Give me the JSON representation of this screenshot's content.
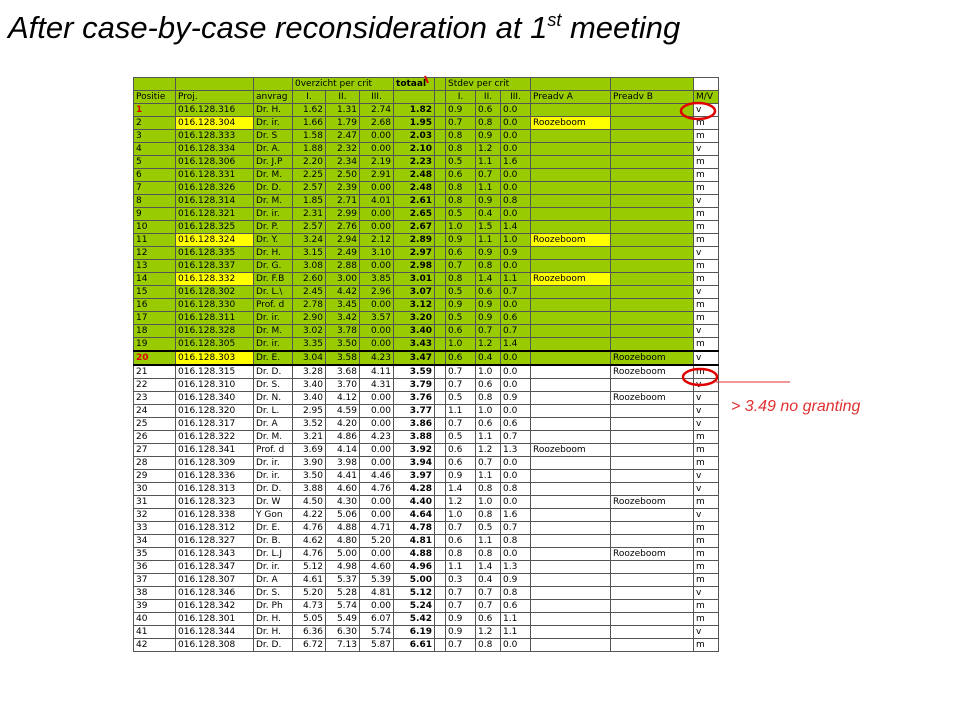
{
  "title": {
    "text": "After case-by-case reconsideration at 1",
    "superscript": "st",
    "text_end": " meeting"
  },
  "annotation": "> 3.49 no granting",
  "table": {
    "group_headers": {
      "scores": "0verzicht per crit",
      "total": "totaal",
      "stdev": "Stdev per crit"
    },
    "columns": [
      "Positie",
      "Proj.",
      "anvrag",
      "I.",
      "II.",
      "III.",
      null,
      "I.",
      "II.",
      "III.",
      "Preadv A",
      "Preadv B",
      "M/V"
    ],
    "rows": [
      [
        "1",
        "016.128.316",
        "Dr. H.",
        "1.62",
        "1.31",
        "2.74",
        "1.82",
        "0.9",
        "0.6",
        "0.0",
        null,
        null,
        "v"
      ],
      [
        "2",
        "016.128.304",
        "Dr. ir.",
        "1.66",
        "1.79",
        "2.68",
        "1.95",
        "0.7",
        "0.8",
        "0.0",
        "Roozeboom",
        null,
        "m"
      ],
      [
        "3",
        "016.128.333",
        "Dr. S",
        "1.58",
        "2.47",
        "0.00",
        "2.03",
        "0.8",
        "0.9",
        "0.0",
        null,
        null,
        "m"
      ],
      [
        "4",
        "016.128.334",
        "Dr. A.",
        "1.88",
        "2.32",
        "0.00",
        "2.10",
        "0.8",
        "1.2",
        "0.0",
        null,
        null,
        "v"
      ],
      [
        "5",
        "016.128.306",
        "Dr. J.P",
        "2.20",
        "2.34",
        "2.19",
        "2.23",
        "0.5",
        "1.1",
        "1.6",
        null,
        null,
        "m"
      ],
      [
        "6",
        "016.128.331",
        "Dr. M.",
        "2.25",
        "2.50",
        "2.91",
        "2.48",
        "0.6",
        "0.7",
        "0.0",
        null,
        null,
        "m"
      ],
      [
        "7",
        "016.128.326",
        "Dr. D.",
        "2.57",
        "2.39",
        "0.00",
        "2.48",
        "0.8",
        "1.1",
        "0.0",
        null,
        null,
        "m"
      ],
      [
        "8",
        "016.128.314",
        "Dr. M.",
        "1.85",
        "2.71",
        "4.01",
        "2.61",
        "0.8",
        "0.9",
        "0.8",
        null,
        null,
        "v"
      ],
      [
        "9",
        "016.128.321",
        "Dr. ir.",
        "2.31",
        "2.99",
        "0.00",
        "2.65",
        "0.5",
        "0.4",
        "0.0",
        null,
        null,
        "m"
      ],
      [
        "10",
        "016.128.325",
        "Dr. P.",
        "2.57",
        "2.76",
        "0.00",
        "2.67",
        "1.0",
        "1.5",
        "1.4",
        null,
        null,
        "m"
      ],
      [
        "11",
        "016.128.324",
        "Dr. Y.",
        "3.24",
        "2.94",
        "2.12",
        "2.89",
        "0.9",
        "1.1",
        "1.0",
        "Roozeboom",
        null,
        "m"
      ],
      [
        "12",
        "016.128.335",
        "Dr. H.",
        "3.15",
        "2.49",
        "3.10",
        "2.97",
        "0.6",
        "0.9",
        "0.9",
        null,
        null,
        "v"
      ],
      [
        "13",
        "016.128.337",
        "Dr. G.",
        "3.08",
        "2.88",
        "0.00",
        "2.98",
        "0.7",
        "0.8",
        "0.0",
        null,
        null,
        "m"
      ],
      [
        "14",
        "016.128.332",
        "Dr. F.B",
        "2.60",
        "3.00",
        "3.85",
        "3.01",
        "0.8",
        "1.4",
        "1.1",
        "Roozeboom",
        null,
        "m"
      ],
      [
        "15",
        "016.128.302",
        "Dr. L.\\",
        "2.45",
        "4.42",
        "2.96",
        "3.07",
        "0.5",
        "0.6",
        "0.7",
        null,
        null,
        "v"
      ],
      [
        "16",
        "016.128.330",
        "Prof. d",
        "2.78",
        "3.45",
        "0.00",
        "3.12",
        "0.9",
        "0.9",
        "0.0",
        null,
        null,
        "m"
      ],
      [
        "17",
        "016.128.311",
        "Dr. ir.",
        "2.90",
        "3.42",
        "3.57",
        "3.20",
        "0.5",
        "0.9",
        "0.6",
        null,
        null,
        "m"
      ],
      [
        "18",
        "016.128.328",
        "Dr. M.",
        "3.02",
        "3.78",
        "0.00",
        "3.40",
        "0.6",
        "0.7",
        "0.7",
        null,
        null,
        "v"
      ],
      [
        "19",
        "016.128.305",
        "Dr. ir.",
        "3.35",
        "3.50",
        "0.00",
        "3.43",
        "1.0",
        "1.2",
        "1.4",
        null,
        null,
        "m"
      ],
      [
        "20",
        "016.128.303",
        "Dr. E.",
        "3.04",
        "3.58",
        "4.23",
        "3.47",
        "0.6",
        "0.4",
        "0.0",
        null,
        "Roozeboom",
        "v"
      ],
      [
        "21",
        "016.128.315",
        "Dr. D.",
        "3.28",
        "3.68",
        "4.11",
        "3.59",
        "0.7",
        "1.0",
        "0.0",
        null,
        "Roozeboom",
        "m"
      ],
      [
        "22",
        "016.128.310",
        "Dr. S.",
        "3.40",
        "3.70",
        "4.31",
        "3.79",
        "0.7",
        "0.6",
        "0.0",
        null,
        null,
        "v"
      ],
      [
        "23",
        "016.128.340",
        "Dr. N.",
        "3.40",
        "4.12",
        "0.00",
        "3.76",
        "0.5",
        "0.8",
        "0.9",
        null,
        "Roozeboom",
        "v"
      ],
      [
        "24",
        "016.128.320",
        "Dr. L.",
        "2.95",
        "4.59",
        "0.00",
        "3.77",
        "1.1",
        "1.0",
        "0.0",
        null,
        null,
        "v"
      ],
      [
        "25",
        "016.128.317",
        "Dr. A",
        "3.52",
        "4.20",
        "0.00",
        "3.86",
        "0.7",
        "0.6",
        "0.6",
        null,
        null,
        "v"
      ],
      [
        "26",
        "016.128.322",
        "Dr. M.",
        "3.21",
        "4.86",
        "4.23",
        "3.88",
        "0.5",
        "1.1",
        "0.7",
        null,
        null,
        "m"
      ],
      [
        "27",
        "016.128.341",
        "Prof. d",
        "3.69",
        "4.14",
        "0.00",
        "3.92",
        "0.6",
        "1.2",
        "1.3",
        "Roozeboom",
        null,
        "m"
      ],
      [
        "28",
        "016.128.309",
        "Dr. ir.",
        "3.90",
        "3.98",
        "0.00",
        "3.94",
        "0.6",
        "0.7",
        "0.0",
        null,
        null,
        "m"
      ],
      [
        "29",
        "016.128.336",
        "Dr. ir.",
        "3.50",
        "4.41",
        "4.46",
        "3.97",
        "0.9",
        "1.1",
        "0.0",
        null,
        null,
        "v"
      ],
      [
        "30",
        "016.128.313",
        "Dr. D.",
        "3.88",
        "4.60",
        "4.76",
        "4.28",
        "1.4",
        "0.8",
        "0.8",
        null,
        null,
        "v"
      ],
      [
        "31",
        "016.128.323",
        "Dr. W",
        "4.50",
        "4.30",
        "0.00",
        "4.40",
        "1.2",
        "1.0",
        "0.0",
        null,
        "Roozeboom",
        "m"
      ],
      [
        "32",
        "016.128.338",
        "Y Gon",
        "4.22",
        "5.06",
        "0.00",
        "4.64",
        "1.0",
        "0.8",
        "1.6",
        null,
        null,
        "v"
      ],
      [
        "33",
        "016.128.312",
        "Dr. E.",
        "4.76",
        "4.88",
        "4.71",
        "4.78",
        "0.7",
        "0.5",
        "0.7",
        null,
        null,
        "m"
      ],
      [
        "34",
        "016.128.327",
        "Dr. B.",
        "4.62",
        "4.80",
        "5.20",
        "4.81",
        "0.6",
        "1.1",
        "0.8",
        null,
        null,
        "m"
      ],
      [
        "35",
        "016.128.343",
        "Dr. L.J",
        "4.76",
        "5.00",
        "0.00",
        "4.88",
        "0.8",
        "0.8",
        "0.0",
        null,
        "Roozeboom",
        "m"
      ],
      [
        "36",
        "016.128.347",
        "Dr. ir.",
        "5.12",
        "4.98",
        "4.60",
        "4.96",
        "1.1",
        "1.4",
        "1.3",
        null,
        null,
        "m"
      ],
      [
        "37",
        "016.128.307",
        "Dr. A",
        "4.61",
        "5.37",
        "5.39",
        "5.00",
        "0.3",
        "0.4",
        "0.9",
        null,
        null,
        "m"
      ],
      [
        "38",
        "016.128.346",
        "Dr. S.",
        "5.20",
        "5.28",
        "4.81",
        "5.12",
        "0.7",
        "0.7",
        "0.8",
        null,
        null,
        "v"
      ],
      [
        "39",
        "016.128.342",
        "Dr. Ph",
        "4.73",
        "5.74",
        "0.00",
        "5.24",
        "0.7",
        "0.7",
        "0.6",
        null,
        null,
        "m"
      ],
      [
        "40",
        "016.128.301",
        "Dr. H.",
        "5.05",
        "5.49",
        "6.07",
        "5.42",
        "0.9",
        "0.6",
        "1.1",
        null,
        null,
        "m"
      ],
      [
        "41",
        "016.128.344",
        "Dr. H.",
        "6.36",
        "6.30",
        "5.74",
        "6.19",
        "0.9",
        "1.2",
        "1.1",
        null,
        null,
        "v"
      ],
      [
        "42",
        "016.128.308",
        "Dr. D.",
        "6.72",
        "7.13",
        "5.87",
        "6.61",
        "0.7",
        "0.8",
        "0.0",
        null,
        null,
        "m"
      ]
    ]
  }
}
